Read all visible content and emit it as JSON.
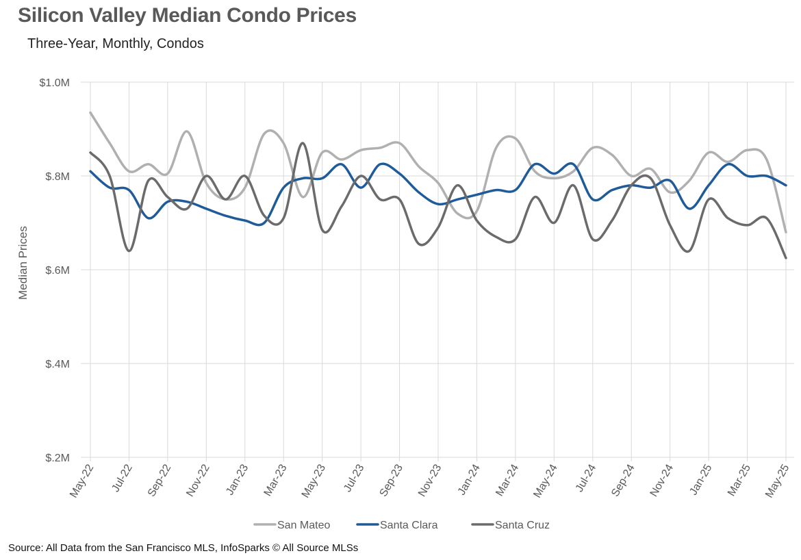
{
  "title": "Silicon Valley Median Condo Prices",
  "subtitle": "Three-Year, Monthly, Condos",
  "source": "Source: All Data from the San Francisco MLS, InfoSparks © All Source MLSs",
  "chart_data": {
    "type": "line",
    "title": "Silicon Valley Median Condo Prices",
    "subtitle": "Three-Year, Monthly, Condos",
    "ylabel": "Median Prices",
    "xlabel": "",
    "ylim": [
      200000,
      1000000
    ],
    "yticks": [
      200000,
      400000,
      600000,
      800000,
      1000000
    ],
    "ytick_labels": [
      "$.2M",
      "$.4M",
      "$.6M",
      "$.8M",
      "$1.0M"
    ],
    "x": [
      "May-22",
      "Jun-22",
      "Jul-22",
      "Aug-22",
      "Sep-22",
      "Oct-22",
      "Nov-22",
      "Dec-22",
      "Jan-23",
      "Feb-23",
      "Mar-23",
      "Apr-23",
      "May-23",
      "Jun-23",
      "Jul-23",
      "Aug-23",
      "Sep-23",
      "Oct-23",
      "Nov-23",
      "Dec-23",
      "Jan-24",
      "Feb-24",
      "Mar-24",
      "Apr-24",
      "May-24",
      "Jun-24",
      "Jul-24",
      "Aug-24",
      "Sep-24",
      "Oct-24",
      "Nov-24",
      "Dec-24",
      "Jan-25",
      "Feb-25",
      "Mar-25",
      "Apr-25",
      "May-25"
    ],
    "xtick_labels": [
      "May-22",
      "Jul-22",
      "Sep-22",
      "Nov-22",
      "Jan-23",
      "Mar-23",
      "May-23",
      "Jul-23",
      "Sep-23",
      "Nov-23",
      "Jan-24",
      "Mar-24",
      "May-24",
      "Jul-24",
      "Sep-24",
      "Nov-24",
      "Jan-25",
      "Mar-25",
      "May-25"
    ],
    "legend_position": "bottom",
    "grid": true,
    "series": [
      {
        "name": "San Mateo",
        "color": "#b0b0b0",
        "values": [
          935000,
          870000,
          810000,
          825000,
          805000,
          895000,
          785000,
          750000,
          775000,
          890000,
          870000,
          755000,
          850000,
          835000,
          855000,
          860000,
          870000,
          820000,
          785000,
          720000,
          725000,
          860000,
          880000,
          810000,
          795000,
          810000,
          860000,
          845000,
          800000,
          815000,
          765000,
          790000,
          850000,
          830000,
          855000,
          835000,
          680000
        ]
      },
      {
        "name": "Santa Clara",
        "color": "#1f5b99",
        "values": [
          810000,
          775000,
          770000,
          710000,
          745000,
          745000,
          730000,
          715000,
          705000,
          700000,
          775000,
          795000,
          795000,
          825000,
          775000,
          825000,
          805000,
          765000,
          740000,
          750000,
          760000,
          770000,
          770000,
          825000,
          805000,
          825000,
          750000,
          770000,
          780000,
          775000,
          790000,
          730000,
          780000,
          825000,
          800000,
          800000,
          780000
        ]
      },
      {
        "name": "Santa Cruz",
        "color": "#6b6b6b",
        "values": [
          850000,
          800000,
          640000,
          790000,
          755000,
          730000,
          800000,
          750000,
          800000,
          715000,
          710000,
          870000,
          685000,
          735000,
          800000,
          750000,
          750000,
          655000,
          690000,
          780000,
          705000,
          670000,
          665000,
          755000,
          700000,
          780000,
          665000,
          705000,
          780000,
          795000,
          695000,
          640000,
          750000,
          710000,
          695000,
          710000,
          625000
        ]
      }
    ]
  }
}
